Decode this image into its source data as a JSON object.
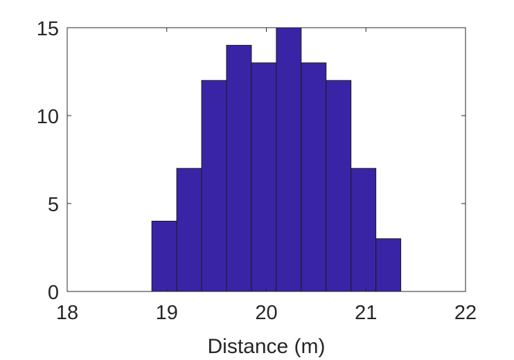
{
  "chart_data": {
    "type": "bar",
    "subtype": "histogram",
    "title": "",
    "xlabel": "Distance (m)",
    "ylabel": "",
    "xlim": [
      18,
      22
    ],
    "ylim": [
      0,
      15
    ],
    "xticks": [
      18,
      19,
      20,
      21,
      22
    ],
    "yticks": [
      0,
      5,
      10,
      15
    ],
    "bin_edges": [
      18.85,
      19.1,
      19.35,
      19.6,
      19.85,
      20.1,
      20.35,
      20.6,
      20.85,
      21.1,
      21.35
    ],
    "values": [
      4,
      7,
      12,
      14,
      13,
      15,
      13,
      12,
      7,
      3
    ],
    "bar_color": "#3a24a6",
    "edge_color": "#1a1a1a",
    "grid": false,
    "legend": "none"
  }
}
